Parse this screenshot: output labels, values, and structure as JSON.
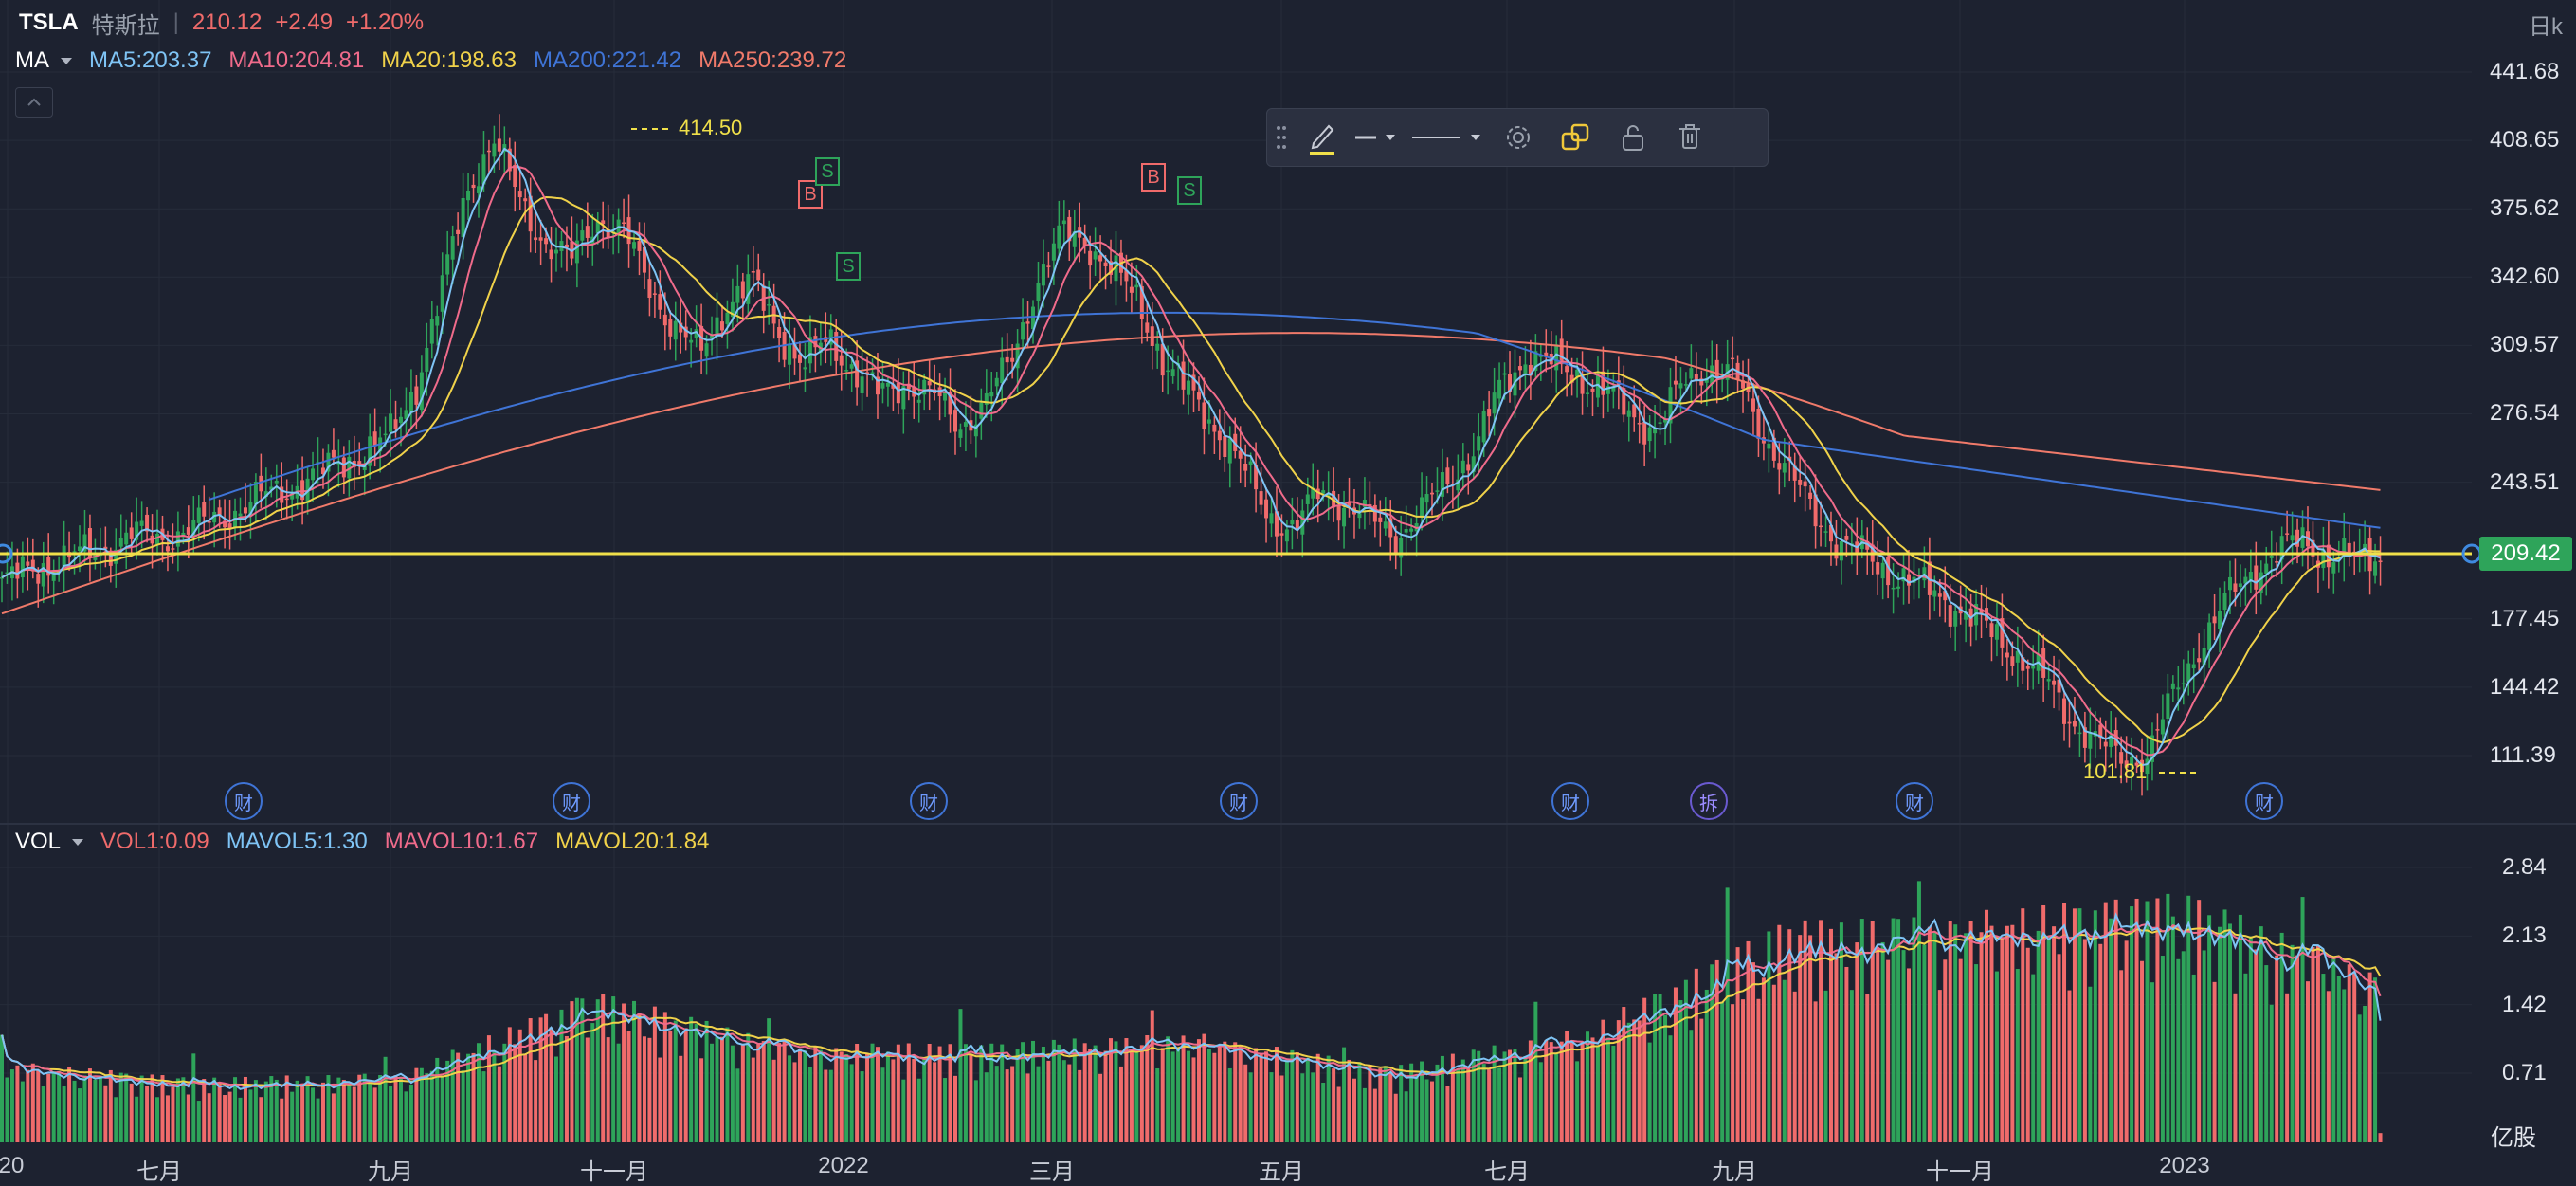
{
  "header": {
    "symbol": "TSLA",
    "name": "特斯拉",
    "separator": "|",
    "price": "210.12",
    "change": "+2.49",
    "change_pct": "+1.20%",
    "timeframe": "日k"
  },
  "ma_legend": {
    "title": "MA",
    "items": [
      {
        "text": "MA5:203.37",
        "color": "#7fc4f5"
      },
      {
        "text": "MA10:204.81",
        "color": "#f06b8b"
      },
      {
        "text": "MA20:198.63",
        "color": "#f0d24a"
      },
      {
        "text": "MA200:221.42",
        "color": "#3f74d6"
      },
      {
        "text": "MA250:239.72",
        "color": "#f07a6a"
      }
    ]
  },
  "vol_legend": {
    "title": "VOL",
    "items": [
      {
        "text": "VOL1:0.09",
        "color": "#f06b6b"
      },
      {
        "text": "MAVOL5:1.30",
        "color": "#7fc4f5"
      },
      {
        "text": "MAVOL10:1.67",
        "color": "#f06b8b"
      },
      {
        "text": "MAVOL20:1.84",
        "color": "#f0d24a"
      }
    ]
  },
  "toolbar": {
    "icons": [
      "drag-handle-icon",
      "pencil-icon",
      "line-style-icon",
      "line-width-icon",
      "settings-icon",
      "clone-icon",
      "lock-icon",
      "delete-icon"
    ],
    "accent": "#f0e04a"
  },
  "current_price_tag": "209.42",
  "annotations": {
    "high": "414.50",
    "low": "101.81",
    "trades": [
      {
        "label": "B",
        "color": "#f06b6b"
      },
      {
        "label": "S",
        "color": "#2ea45a"
      },
      {
        "label": "S",
        "color": "#2ea45a"
      },
      {
        "label": "B",
        "color": "#f06b6b"
      },
      {
        "label": "S",
        "color": "#2ea45a"
      }
    ],
    "events": [
      "财",
      "财",
      "财",
      "财",
      "财",
      "拆",
      "财",
      "财"
    ]
  },
  "vol_unit": "亿股",
  "colors": {
    "background": "#1d2230",
    "up": "#2ea45a",
    "down": "#f06b6b",
    "horizontal_line": "#f0e04a"
  },
  "chart_data": [
    {
      "type": "candlestick",
      "title": "TSLA 日k",
      "y_ticks": [
        "441.68",
        "408.65",
        "375.62",
        "342.60",
        "309.57",
        "276.54",
        "243.51",
        "209.42",
        "177.45",
        "144.42",
        "111.39"
      ],
      "ylim": [
        90,
        450
      ],
      "x_ticks": [
        "20",
        "七月",
        "九月",
        "十一月",
        "2022",
        "三月",
        "五月",
        "七月",
        "九月",
        "十一月",
        "2023"
      ],
      "grid": true,
      "approx_close_path": [
        {
          "date": "2021-05",
          "close": 195
        },
        {
          "date": "2021-06",
          "close": 207
        },
        {
          "date": "2021-07",
          "close": 216
        },
        {
          "date": "2021-08",
          "close": 236
        },
        {
          "date": "2021-09",
          "close": 258
        },
        {
          "date": "2021-10",
          "close": 335
        },
        {
          "date": "2021-11",
          "close": 385
        },
        {
          "date": "2021-12",
          "close": 352
        },
        {
          "date": "2022-01",
          "close": 312
        },
        {
          "date": "2022-02",
          "close": 290
        },
        {
          "date": "2022-03",
          "close": 363
        },
        {
          "date": "2022-04",
          "close": 290
        },
        {
          "date": "2022-05",
          "close": 253
        },
        {
          "date": "2022-06",
          "close": 227
        },
        {
          "date": "2022-07",
          "close": 297
        },
        {
          "date": "2022-08",
          "close": 275
        },
        {
          "date": "2022-09",
          "close": 265
        },
        {
          "date": "2022-10",
          "close": 227
        },
        {
          "date": "2022-11",
          "close": 195
        },
        {
          "date": "2022-12",
          "close": 123
        },
        {
          "date": "2023-01",
          "close": 173
        },
        {
          "date": "2023-02",
          "close": 205
        },
        {
          "date": "2023-03",
          "close": 209
        }
      ],
      "ma200_end": 221.42,
      "ma250_end": 239.72,
      "horizontal_line": 209.42,
      "high_mark": 414.5,
      "low_mark": 101.81
    },
    {
      "type": "bar",
      "title": "VOL",
      "y_ticks": [
        "2.84",
        "2.13",
        "1.42",
        "0.71"
      ],
      "unit": "亿股",
      "ylim": [
        0,
        3.1
      ],
      "approx_volume_path": [
        {
          "date": "2021-05",
          "vol": 0.7
        },
        {
          "date": "2021-08",
          "vol": 0.55
        },
        {
          "date": "2021-10",
          "vol": 0.6
        },
        {
          "date": "2021-11",
          "vol": 1.3
        },
        {
          "date": "2022-01",
          "vol": 0.85
        },
        {
          "date": "2022-03",
          "vol": 0.85
        },
        {
          "date": "2022-06",
          "vol": 0.95
        },
        {
          "date": "2022-09",
          "vol": 0.65
        },
        {
          "date": "2022-11",
          "vol": 1.0
        },
        {
          "date": "2022-12",
          "vol": 1.9
        },
        {
          "date": "2023-01",
          "vol": 2.0
        },
        {
          "date": "2023-02",
          "vol": 2.15
        },
        {
          "date": "2023-03",
          "vol": 1.5
        }
      ]
    }
  ]
}
